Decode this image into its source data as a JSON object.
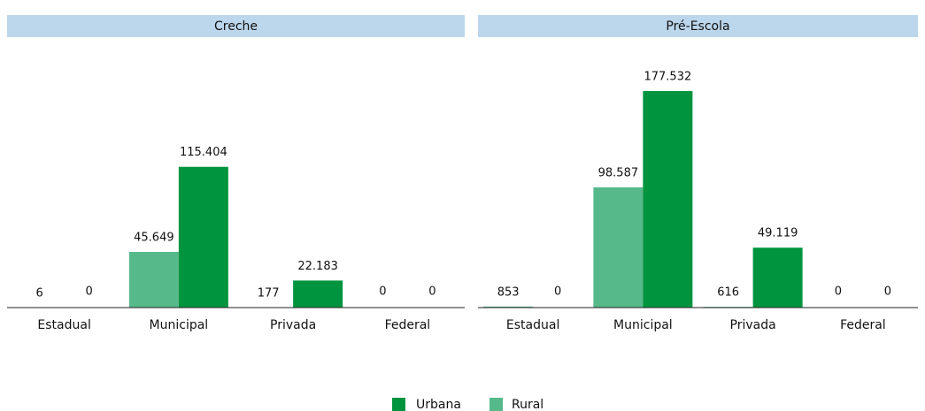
{
  "chart_data": [
    {
      "type": "bar",
      "title": "Creche",
      "categories": [
        "Estadual",
        "Municipal",
        "Privada",
        "Federal"
      ],
      "series": [
        {
          "name": "Urbana",
          "color": "#00943f",
          "values": [
            0,
            115404,
            22183,
            0
          ],
          "value_labels": [
            "0",
            "115.404",
            "22.183",
            "0"
          ]
        },
        {
          "name": "Rural",
          "color": "#55b98a",
          "values": [
            6,
            45649,
            177,
            0
          ],
          "value_labels": [
            "6",
            "45.649",
            "177",
            "0"
          ]
        }
      ]
    },
    {
      "type": "bar",
      "title": "Pré-Escola",
      "categories": [
        "Estadual",
        "Municipal",
        "Privada",
        "Federal"
      ],
      "series": [
        {
          "color": "#00943f",
          "values": [
            0,
            177532,
            49119,
            0
          ],
          "value_labels": [
            "0",
            "177.532",
            "49.119",
            "0"
          ]
        },
        {
          "color": "#55b98a",
          "values": [
            853,
            98587,
            616,
            0
          ],
          "value_labels": [
            "853",
            "98.587",
            "616",
            "0"
          ]
        }
      ]
    }
  ]
}
